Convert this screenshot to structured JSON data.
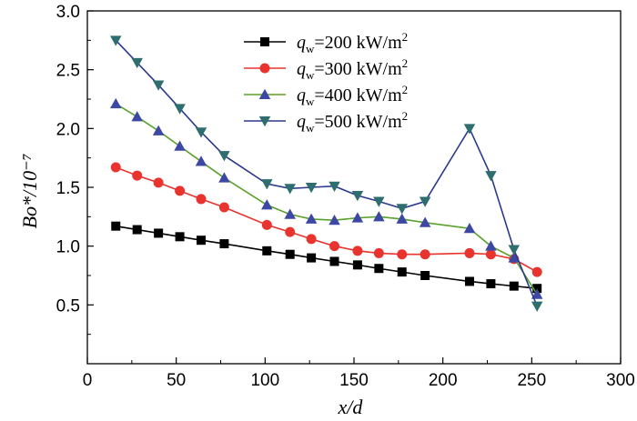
{
  "chart_data": {
    "type": "line",
    "xlabel": "x/d",
    "ylabel": "Bo*/10⁻⁷",
    "xlim": [
      0,
      300
    ],
    "ylim": [
      0,
      3.0
    ],
    "x_ticks": [
      0,
      50,
      100,
      150,
      200,
      250,
      300
    ],
    "x_tick_labels": [
      "0",
      "50",
      "100",
      "150",
      "200",
      "250",
      "300"
    ],
    "y_ticks": [
      0.5,
      1.0,
      1.5,
      2.0,
      2.5,
      3.0
    ],
    "y_tick_labels": [
      "0.5",
      "1.0",
      "1.5",
      "2.0",
      "2.5",
      "3.0"
    ],
    "legend_position": "top-right",
    "grid": false,
    "series": [
      {
        "name": "qw=200 kW/m²",
        "label_main": "q",
        "label_sub": "w",
        "label_rest": "=200 kW/m",
        "label_sup": "2",
        "color": "#000000",
        "marker": "square",
        "x": [
          16,
          28,
          40,
          52,
          64,
          77,
          101,
          114,
          126,
          139,
          152,
          164,
          177,
          190,
          215,
          227,
          240,
          253
        ],
        "y": [
          1.17,
          1.14,
          1.11,
          1.08,
          1.05,
          1.02,
          0.96,
          0.93,
          0.9,
          0.87,
          0.84,
          0.81,
          0.78,
          0.75,
          0.7,
          0.68,
          0.66,
          0.64
        ]
      },
      {
        "name": "qw=300 kW/m²",
        "label_main": "q",
        "label_sub": "w",
        "label_rest": "=300 kW/m",
        "label_sup": "2",
        "color": "#e8332e",
        "marker": "circle",
        "x": [
          16,
          28,
          40,
          52,
          64,
          77,
          101,
          114,
          126,
          139,
          152,
          164,
          177,
          190,
          215,
          227,
          240,
          253
        ],
        "y": [
          1.67,
          1.6,
          1.54,
          1.47,
          1.4,
          1.33,
          1.18,
          1.12,
          1.06,
          1.0,
          0.96,
          0.94,
          0.93,
          0.93,
          0.94,
          0.93,
          0.89,
          0.78
        ]
      },
      {
        "name": "qw=400 kW/m²",
        "label_main": "q",
        "label_sub": "w",
        "label_rest": "=400 kW/m",
        "label_sup": "2",
        "color": "#3c48a3",
        "line_color": "#5aa02c",
        "marker": "triangle-up",
        "x": [
          16,
          28,
          40,
          52,
          64,
          77,
          101,
          114,
          126,
          139,
          152,
          164,
          177,
          190,
          215,
          227,
          240,
          253
        ],
        "y": [
          2.21,
          2.1,
          1.98,
          1.85,
          1.72,
          1.58,
          1.35,
          1.27,
          1.23,
          1.22,
          1.24,
          1.25,
          1.23,
          1.2,
          1.15,
          1.0,
          0.9,
          0.59
        ]
      },
      {
        "name": "qw=500 kW/m²",
        "label_main": "q",
        "label_sub": "w",
        "label_rest": "=500 kW/m",
        "label_sup": "2",
        "color": "#2e6e6e",
        "line_color": "#2b3a8c",
        "marker": "triangle-down",
        "x": [
          16,
          28,
          40,
          52,
          64,
          77,
          101,
          114,
          126,
          139,
          152,
          164,
          177,
          190,
          215,
          227,
          240,
          253
        ],
        "y": [
          2.75,
          2.56,
          2.37,
          2.17,
          1.97,
          1.77,
          1.53,
          1.49,
          1.5,
          1.51,
          1.43,
          1.38,
          1.32,
          1.38,
          2.0,
          1.6,
          0.97,
          0.49
        ]
      }
    ]
  }
}
